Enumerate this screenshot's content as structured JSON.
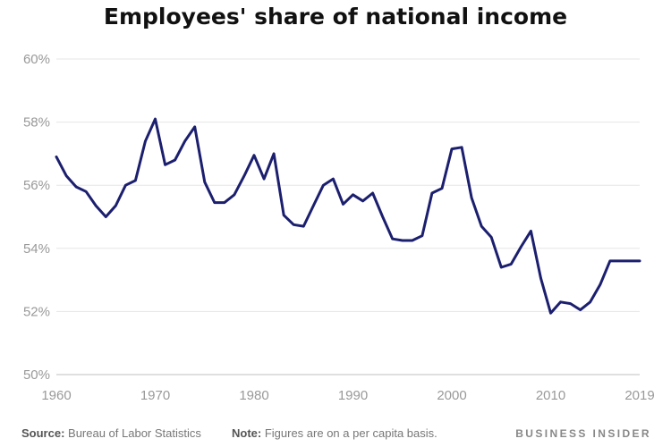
{
  "title": "Employees' share of national income",
  "footer": {
    "source_label": "Source:",
    "source_text": " Bureau of Labor Statistics",
    "note_label": "Note:",
    "note_text": " Figures are on a per capita basis.",
    "brand": "BUSINESS INSIDER"
  },
  "colors": {
    "line": "#1b1f6e",
    "grid": "#e6e6e6",
    "axis": "#cccccc",
    "tick_text": "#999999"
  },
  "chart_data": {
    "type": "line",
    "title": "Employees' share of national income",
    "xlabel": "",
    "ylabel": "",
    "xlim": [
      1960,
      2019
    ],
    "ylim": [
      50,
      60
    ],
    "yticks": [
      50,
      52,
      54,
      56,
      58,
      60
    ],
    "ytick_labels": [
      "50%",
      "52%",
      "54%",
      "56%",
      "58%",
      "60%"
    ],
    "xticks": [
      1960,
      1970,
      1980,
      1990,
      2000,
      2010,
      2019
    ],
    "xtick_labels": [
      "1960",
      "1970",
      "1980",
      "1990",
      "2000",
      "2010",
      "2019"
    ],
    "grid": true,
    "legend": "none",
    "series": [
      {
        "x": [
          1960,
          1961,
          1962,
          1963,
          1964,
          1965,
          1966,
          1967,
          1968,
          1969,
          1970,
          1971,
          1972,
          1973,
          1974,
          1975,
          1976,
          1977,
          1978,
          1979,
          1980,
          1981,
          1982,
          1983,
          1984,
          1985,
          1986,
          1987,
          1988,
          1989,
          1990,
          1991,
          1992,
          1993,
          1994,
          1995,
          1996,
          1997,
          1998,
          1999,
          2000,
          2001,
          2002,
          2003,
          2004,
          2005,
          2006,
          2007,
          2008,
          2009,
          2010,
          2011,
          2012,
          2013,
          2014,
          2015,
          2016,
          2017,
          2018,
          2019
        ],
        "values": [
          56.9,
          56.3,
          55.95,
          55.8,
          55.35,
          55.0,
          55.35,
          56.0,
          56.15,
          57.4,
          58.1,
          56.65,
          56.8,
          57.4,
          57.85,
          56.1,
          55.45,
          55.45,
          55.7,
          56.3,
          56.95,
          56.2,
          57.0,
          55.05,
          54.75,
          54.7,
          55.35,
          56.0,
          56.2,
          55.4,
          55.7,
          55.5,
          55.75,
          55.0,
          54.3,
          54.25,
          54.25,
          54.4,
          55.75,
          55.9,
          57.15,
          57.2,
          55.6,
          54.7,
          54.35,
          53.4,
          53.5,
          54.05,
          54.55,
          53.05,
          51.95,
          52.3,
          52.25,
          52.05,
          52.3,
          52.85,
          53.6,
          53.6,
          53.6,
          53.6
        ]
      }
    ]
  }
}
